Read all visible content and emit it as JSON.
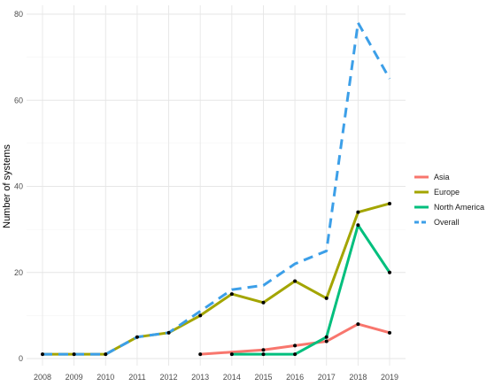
{
  "chart_data": {
    "type": "line",
    "xlabel": "",
    "ylabel": "Number of systems",
    "x": [
      2008,
      2009,
      2010,
      2011,
      2012,
      2013,
      2014,
      2015,
      2016,
      2017,
      2018,
      2019
    ],
    "xlim": [
      2008,
      2019
    ],
    "ylim": [
      0,
      80
    ],
    "y_ticks": [
      0,
      20,
      40,
      60,
      80
    ],
    "grid": true,
    "legend_position": "right",
    "series": [
      {
        "name": "Asia",
        "color": "#F8766D",
        "dash": "solid",
        "markers": true,
        "points": [
          [
            2013,
            1
          ],
          [
            2015,
            2
          ],
          [
            2016,
            3
          ],
          [
            2017,
            4
          ],
          [
            2018,
            8
          ],
          [
            2019,
            6
          ]
        ]
      },
      {
        "name": "Europe",
        "color": "#A3A500",
        "dash": "solid",
        "markers": true,
        "points": [
          [
            2008,
            1
          ],
          [
            2009,
            1
          ],
          [
            2010,
            1
          ],
          [
            2011,
            5
          ],
          [
            2012,
            6
          ],
          [
            2013,
            10
          ],
          [
            2014,
            15
          ],
          [
            2015,
            13
          ],
          [
            2016,
            18
          ],
          [
            2017,
            14
          ],
          [
            2018,
            34
          ],
          [
            2019,
            36
          ]
        ]
      },
      {
        "name": "North America",
        "color": "#00BF7D",
        "dash": "solid",
        "markers": true,
        "points": [
          [
            2014,
            1
          ],
          [
            2015,
            1
          ],
          [
            2016,
            1
          ],
          [
            2017,
            5
          ],
          [
            2018,
            31
          ],
          [
            2019,
            20
          ]
        ]
      },
      {
        "name": "Overall",
        "color": "#3C9FE8",
        "dash": "dashed",
        "markers": false,
        "points": [
          [
            2008,
            1
          ],
          [
            2009,
            1
          ],
          [
            2010,
            1
          ],
          [
            2011,
            5
          ],
          [
            2012,
            6
          ],
          [
            2013,
            11
          ],
          [
            2014,
            16
          ],
          [
            2015,
            17
          ],
          [
            2016,
            22
          ],
          [
            2017,
            25
          ],
          [
            2018,
            78
          ],
          [
            2019,
            65
          ]
        ]
      }
    ]
  }
}
